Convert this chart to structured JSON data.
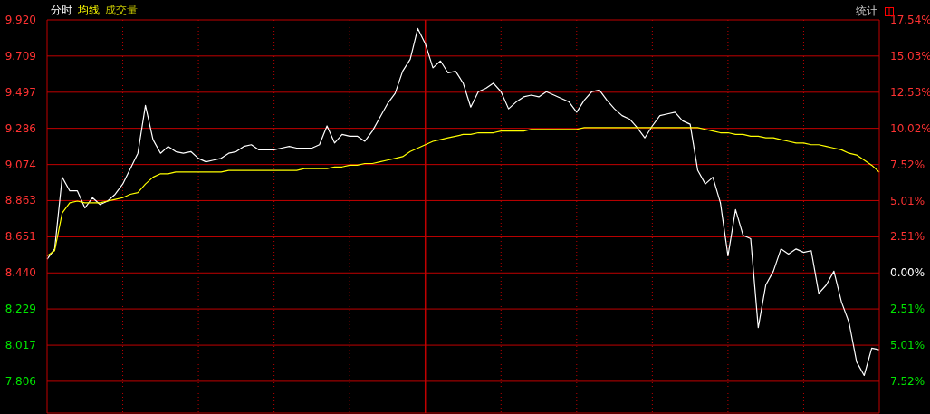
{
  "chart_data": {
    "type": "line",
    "annotations": [
      "成交量",
      "统计"
    ],
    "categories": [
      null,
      null,
      null,
      null,
      null,
      null,
      null,
      null,
      null,
      null,
      null,
      null,
      null,
      null,
      null,
      null,
      null,
      null,
      null,
      null,
      null,
      null,
      null,
      null,
      null,
      null,
      null,
      null,
      null,
      null,
      null,
      null,
      null,
      null,
      null,
      null,
      null,
      null,
      null,
      null,
      null,
      null,
      null,
      null,
      null,
      null,
      null,
      null,
      null,
      null,
      null,
      null,
      null,
      null,
      null,
      null,
      null,
      null,
      null,
      null,
      null,
      null,
      null,
      null,
      null,
      null,
      null,
      null,
      null,
      null,
      null,
      null,
      null,
      null,
      null,
      null,
      null,
      null,
      null,
      null,
      null,
      null,
      null,
      null,
      null,
      null,
      null,
      null,
      null,
      null,
      null,
      null,
      null,
      null,
      null,
      null,
      null,
      null,
      null,
      null,
      null,
      null,
      null,
      null,
      null,
      null,
      null,
      null,
      null,
      null,
      null
    ],
    "series": [
      {
        "name": "分时",
        "color": "#ffffff",
        "values": [
          8.52,
          8.58,
          9.0,
          8.92,
          8.92,
          8.82,
          8.88,
          8.84,
          8.86,
          8.9,
          8.96,
          9.05,
          9.14,
          9.42,
          9.22,
          9.14,
          9.18,
          9.15,
          9.14,
          9.15,
          9.11,
          9.09,
          9.1,
          9.11,
          9.14,
          9.15,
          9.18,
          9.19,
          9.16,
          9.16,
          9.16,
          9.17,
          9.18,
          9.17,
          9.17,
          9.17,
          9.19,
          9.3,
          9.2,
          9.25,
          9.24,
          9.24,
          9.21,
          9.27,
          9.35,
          9.43,
          9.49,
          9.62,
          9.69,
          9.87,
          9.78,
          9.64,
          9.68,
          9.61,
          9.62,
          9.55,
          9.41,
          9.5,
          9.52,
          9.55,
          9.5,
          9.4,
          9.44,
          9.47,
          9.48,
          9.47,
          9.5,
          9.48,
          9.46,
          9.44,
          9.38,
          9.45,
          9.5,
          9.51,
          9.45,
          9.4,
          9.36,
          9.34,
          9.29,
          9.23,
          9.3,
          9.36,
          9.37,
          9.38,
          9.33,
          9.31,
          9.04,
          8.96,
          9.0,
          8.85,
          8.54,
          8.81,
          8.66,
          8.64,
          8.12,
          8.37,
          8.45,
          8.58,
          8.55,
          8.58,
          8.56,
          8.57,
          8.32,
          8.37,
          8.45,
          8.27,
          8.15,
          7.92,
          7.84,
          8.0,
          7.99
        ]
      },
      {
        "name": "均线",
        "color": "#ffff00",
        "values": [
          8.54,
          8.57,
          8.79,
          8.85,
          8.86,
          8.85,
          8.85,
          8.85,
          8.86,
          8.87,
          8.88,
          8.9,
          8.91,
          8.96,
          9.0,
          9.02,
          9.02,
          9.03,
          9.03,
          9.03,
          9.03,
          9.03,
          9.03,
          9.03,
          9.04,
          9.04,
          9.04,
          9.04,
          9.04,
          9.04,
          9.04,
          9.04,
          9.04,
          9.04,
          9.05,
          9.05,
          9.05,
          9.05,
          9.06,
          9.06,
          9.07,
          9.07,
          9.08,
          9.08,
          9.09,
          9.1,
          9.11,
          9.12,
          9.15,
          9.17,
          9.19,
          9.21,
          9.22,
          9.23,
          9.24,
          9.25,
          9.25,
          9.26,
          9.26,
          9.26,
          9.27,
          9.27,
          9.27,
          9.27,
          9.28,
          9.28,
          9.28,
          9.28,
          9.28,
          9.28,
          9.28,
          9.29,
          9.29,
          9.29,
          9.29,
          9.29,
          9.29,
          9.29,
          9.29,
          9.29,
          9.29,
          9.29,
          9.29,
          9.29,
          9.29,
          9.29,
          9.29,
          9.28,
          9.27,
          9.26,
          9.26,
          9.25,
          9.25,
          9.24,
          9.24,
          9.23,
          9.23,
          9.22,
          9.21,
          9.2,
          9.2,
          9.19,
          9.19,
          9.18,
          9.17,
          9.16,
          9.14,
          9.13,
          9.1,
          9.07,
          9.03
        ]
      }
    ],
    "ylim": [
      7.62,
      9.92
    ],
    "yticks": [
      {
        "value": 7.806,
        "label": "7.806"
      },
      {
        "value": 8.017,
        "label": "8.017"
      },
      {
        "value": 8.229,
        "label": "8.229"
      },
      {
        "value": 8.44,
        "label": "8.440"
      },
      {
        "value": 8.651,
        "label": "8.651"
      },
      {
        "value": 8.863,
        "label": "8.863"
      },
      {
        "value": 9.074,
        "label": "9.074"
      },
      {
        "value": 9.286,
        "label": "9.286"
      },
      {
        "value": 9.497,
        "label": "9.497"
      },
      {
        "value": 9.709,
        "label": "9.709"
      },
      {
        "value": 9.92,
        "label": "9.920"
      }
    ],
    "y2lim": [
      -9.7,
      17.54
    ],
    "y2ticks": [
      {
        "value": -7.52,
        "label": "7.52%"
      },
      {
        "value": -5.01,
        "label": "5.01%"
      },
      {
        "value": -2.51,
        "label": "2.51%"
      },
      {
        "value": 0,
        "label": "0.00%"
      },
      {
        "value": 2.51,
        "label": "2.51%"
      },
      {
        "value": 5.01,
        "label": "5.01%"
      },
      {
        "value": 7.52,
        "label": "7.52%"
      },
      {
        "value": 10.02,
        "label": "10.02%"
      },
      {
        "value": 12.53,
        "label": "12.53%"
      },
      {
        "value": 15.03,
        "label": "15.03%"
      },
      {
        "value": 17.54,
        "label": "17.54%"
      }
    ],
    "grid": true,
    "marker": "none",
    "line_style": "solid"
  }
}
